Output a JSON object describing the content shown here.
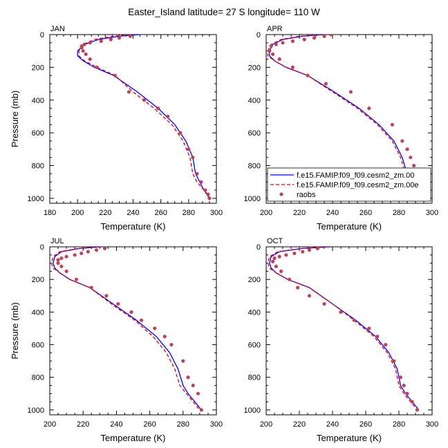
{
  "figure": {
    "title": "Easter_Island  latitude= 27 S longitude= 110 W"
  },
  "legend": {
    "panel": "APR",
    "items": [
      {
        "label": "f.e15.FAMIP.f09_f09.cesm2_zm.00",
        "style": "solid",
        "color": "#0000ff"
      },
      {
        "label": "f.e15.FAMIP.f09_f09.cesm2_zm.00e",
        "style": "dashed",
        "color": "#dd0000"
      },
      {
        "label": "raobs",
        "style": "dots",
        "color": "#b84560"
      }
    ]
  },
  "chart_data": [
    {
      "type": "line",
      "title": "JAN",
      "xlabel": "Temperature (K)",
      "ylabel": "Pressure (mb)",
      "xlim": [
        180,
        300
      ],
      "ylim": [
        0,
        1030
      ],
      "y_reversed": true,
      "xticks": [
        180,
        200,
        220,
        240,
        260,
        280,
        300
      ],
      "yticks": [
        0,
        200,
        400,
        600,
        800,
        1000
      ],
      "series": [
        {
          "style": "solid",
          "color": "#0000ff",
          "x": [
            245,
            230,
            215,
            205,
            200,
            200,
            204,
            212,
            226,
            243,
            258,
            270,
            278,
            283,
            285,
            288,
            291,
            295
          ],
          "y": [
            0,
            10,
            30,
            60,
            100,
            130,
            160,
            200,
            250,
            350,
            450,
            550,
            650,
            750,
            850,
            900,
            950,
            1000
          ]
        },
        {
          "style": "dashed",
          "color": "#dd0000",
          "x": [
            238,
            226,
            212,
            204,
            201,
            201,
            205,
            214,
            227,
            240,
            255,
            268,
            276,
            281,
            283,
            286,
            291,
            296
          ],
          "y": [
            0,
            10,
            30,
            60,
            100,
            130,
            160,
            200,
            250,
            350,
            450,
            550,
            650,
            750,
            850,
            900,
            950,
            1000
          ]
        },
        {
          "style": "dots",
          "color": "#b84560",
          "x": [
            238,
            230,
            224,
            217,
            209,
            205,
            203,
            203,
            204,
            206,
            209,
            214,
            227,
            237,
            248,
            258,
            265,
            274,
            280,
            283,
            286,
            289,
            292,
            294,
            295
          ],
          "y": [
            10,
            20,
            30,
            40,
            50,
            60,
            70,
            80,
            100,
            120,
            150,
            200,
            250,
            350,
            400,
            450,
            500,
            600,
            700,
            750,
            850,
            900,
            950,
            975,
            1000
          ]
        }
      ]
    },
    {
      "type": "line",
      "title": "APR",
      "xlabel": "Temperature (K)",
      "ylabel": "",
      "xlim": [
        200,
        300
      ],
      "ylim": [
        0,
        1030
      ],
      "y_reversed": true,
      "xticks": [
        200,
        220,
        240,
        260,
        280,
        300
      ],
      "yticks": [
        0,
        200,
        400,
        600,
        800,
        1000
      ],
      "series": [
        {
          "style": "solid",
          "color": "#0000ff",
          "x": [
            235,
            222,
            210,
            204,
            202,
            202,
            205,
            212,
            225,
            241,
            256,
            268,
            277,
            282,
            285,
            288,
            291,
            294
          ],
          "y": [
            0,
            10,
            30,
            60,
            100,
            130,
            160,
            200,
            250,
            350,
            450,
            550,
            650,
            750,
            850,
            900,
            950,
            1000
          ]
        },
        {
          "style": "dashed",
          "color": "#dd0000",
          "x": [
            233,
            220,
            209,
            203,
            201,
            201,
            205,
            212,
            225,
            240,
            255,
            267,
            276,
            281,
            284,
            287,
            290,
            294
          ],
          "y": [
            0,
            10,
            30,
            60,
            100,
            130,
            160,
            200,
            250,
            350,
            450,
            550,
            650,
            750,
            850,
            900,
            950,
            1000
          ]
        },
        {
          "style": "dots",
          "color": "#b84560",
          "x": [
            239,
            235,
            229,
            223,
            216,
            210,
            206,
            203,
            202,
            204,
            208,
            216,
            225,
            236,
            251,
            262,
            276,
            282,
            285,
            287,
            289,
            291,
            293,
            295
          ],
          "y": [
            0,
            10,
            20,
            30,
            40,
            50,
            60,
            70,
            100,
            120,
            150,
            200,
            250,
            300,
            350,
            450,
            550,
            650,
            700,
            750,
            800,
            850,
            900,
            1000
          ]
        }
      ]
    },
    {
      "type": "line",
      "title": "JUL",
      "xlabel": "Temperature (K)",
      "ylabel": "Pressure (mb)",
      "xlim": [
        200,
        300
      ],
      "ylim": [
        0,
        1030
      ],
      "y_reversed": true,
      "xticks": [
        200,
        220,
        240,
        260,
        280,
        300
      ],
      "yticks": [
        0,
        200,
        400,
        600,
        800,
        1000
      ],
      "series": [
        {
          "style": "solid",
          "color": "#0000ff",
          "x": [
            231,
            218,
            207,
            203,
            202,
            203,
            206,
            212,
            224,
            238,
            252,
            264,
            272,
            277,
            280,
            283,
            287,
            291
          ],
          "y": [
            0,
            10,
            30,
            60,
            100,
            130,
            160,
            200,
            250,
            350,
            450,
            550,
            650,
            750,
            850,
            900,
            950,
            1000
          ]
        },
        {
          "style": "dashed",
          "color": "#dd0000",
          "x": [
            230,
            217,
            206,
            202,
            201,
            202,
            206,
            212,
            224,
            237,
            251,
            262,
            270,
            275,
            278,
            282,
            286,
            290
          ],
          "y": [
            0,
            10,
            30,
            60,
            100,
            130,
            160,
            200,
            250,
            350,
            450,
            550,
            650,
            750,
            850,
            900,
            950,
            1000
          ]
        },
        {
          "style": "dots",
          "color": "#b84560",
          "x": [
            233,
            228,
            223,
            219,
            215,
            210,
            207,
            205,
            205,
            207,
            210,
            216,
            225,
            234,
            241,
            249,
            255,
            263,
            269,
            273,
            280,
            283,
            286,
            289,
            291
          ],
          "y": [
            10,
            20,
            30,
            40,
            50,
            60,
            70,
            80,
            100,
            120,
            150,
            200,
            250,
            300,
            350,
            400,
            450,
            500,
            550,
            600,
            700,
            800,
            850,
            900,
            1000
          ]
        }
      ]
    },
    {
      "type": "line",
      "title": "OCT",
      "xlabel": "Temperature (K)",
      "ylabel": "",
      "xlim": [
        200,
        300
      ],
      "ylim": [
        0,
        1030
      ],
      "y_reversed": true,
      "xticks": [
        200,
        220,
        240,
        260,
        280,
        300
      ],
      "yticks": [
        0,
        200,
        400,
        600,
        800,
        1000
      ],
      "series": [
        {
          "style": "solid",
          "color": "#0000ff",
          "x": [
            239,
            222,
            208,
            203,
            202,
            203,
            206,
            213,
            226,
            240,
            254,
            266,
            274,
            279,
            281,
            284,
            288,
            292
          ],
          "y": [
            0,
            10,
            30,
            60,
            100,
            130,
            160,
            200,
            250,
            350,
            450,
            550,
            650,
            750,
            850,
            900,
            950,
            1000
          ]
        },
        {
          "style": "dashed",
          "color": "#dd0000",
          "x": [
            237,
            221,
            207,
            202,
            201,
            202,
            206,
            213,
            226,
            240,
            253,
            265,
            273,
            278,
            280,
            283,
            287,
            291
          ],
          "y": [
            0,
            10,
            30,
            60,
            100,
            130,
            160,
            200,
            250,
            350,
            450,
            550,
            650,
            750,
            850,
            900,
            950,
            1000
          ]
        },
        {
          "style": "dots",
          "color": "#b84560",
          "x": [
            231,
            226,
            222,
            217,
            212,
            208,
            205,
            204,
            206,
            209,
            214,
            219,
            226,
            235,
            245,
            253,
            262,
            267,
            272,
            277,
            281,
            283,
            285,
            288,
            291
          ],
          "y": [
            10,
            20,
            30,
            40,
            50,
            60,
            70,
            90,
            120,
            150,
            200,
            250,
            300,
            350,
            400,
            450,
            500,
            550,
            600,
            700,
            800,
            850,
            900,
            950,
            1000
          ]
        }
      ]
    }
  ]
}
